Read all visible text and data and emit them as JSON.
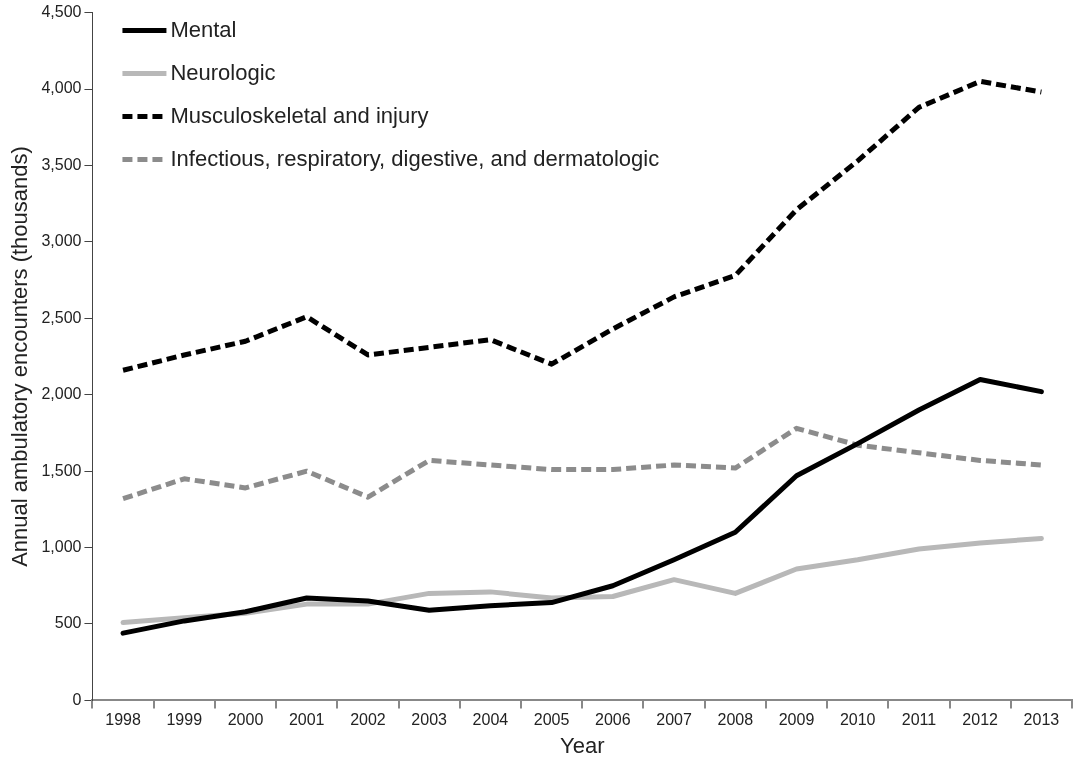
{
  "chart_data": {
    "type": "line",
    "xlabel": "Year",
    "ylabel": "Annual ambulatory encounters (thousands)",
    "categories": [
      "1998",
      "1999",
      "2000",
      "2001",
      "2002",
      "2003",
      "2004",
      "2005",
      "2006",
      "2007",
      "2008",
      "2009",
      "2010",
      "2011",
      "2012",
      "2013"
    ],
    "series": [
      {
        "name": "Mental",
        "color": "#000000",
        "line_style": "solid",
        "values": [
          440,
          520,
          580,
          670,
          650,
          590,
          620,
          640,
          750,
          920,
          1100,
          1470,
          1680,
          1900,
          2100,
          2020
        ]
      },
      {
        "name": "Neurologic",
        "color": "#b8b8b8",
        "line_style": "solid",
        "values": [
          510,
          540,
          570,
          630,
          630,
          700,
          710,
          670,
          680,
          790,
          700,
          860,
          920,
          990,
          1030,
          1060
        ]
      },
      {
        "name": "Musculoskeletal and injury",
        "color": "#000000",
        "line_style": "dashed",
        "values": [
          2160,
          2260,
          2350,
          2510,
          2260,
          2310,
          2360,
          2200,
          2430,
          2640,
          2780,
          3210,
          3530,
          3880,
          4050,
          3980
        ]
      },
      {
        "name": "Infectious, respiratory, digestive, and dermatologic",
        "color": "#8c8c8c",
        "line_style": "dashed",
        "values": [
          1320,
          1450,
          1390,
          1500,
          1330,
          1570,
          1540,
          1510,
          1510,
          1540,
          1520,
          1780,
          1670,
          1620,
          1570,
          1540
        ]
      }
    ],
    "ylim": [
      0,
      4500
    ],
    "yticks": [
      {
        "value": 0,
        "label": "0"
      },
      {
        "value": 500,
        "label": "500"
      },
      {
        "value": 1000,
        "label": "1,000"
      },
      {
        "value": 1500,
        "label": "1,500"
      },
      {
        "value": 2000,
        "label": "2,000"
      },
      {
        "value": 2500,
        "label": "2,500"
      },
      {
        "value": 3000,
        "label": "3,000"
      },
      {
        "value": 3500,
        "label": "3,500"
      },
      {
        "value": 4000,
        "label": "4,000"
      },
      {
        "value": 4500,
        "label": "4,500"
      }
    ],
    "grid": false,
    "legend": "top left",
    "marker": "none"
  }
}
